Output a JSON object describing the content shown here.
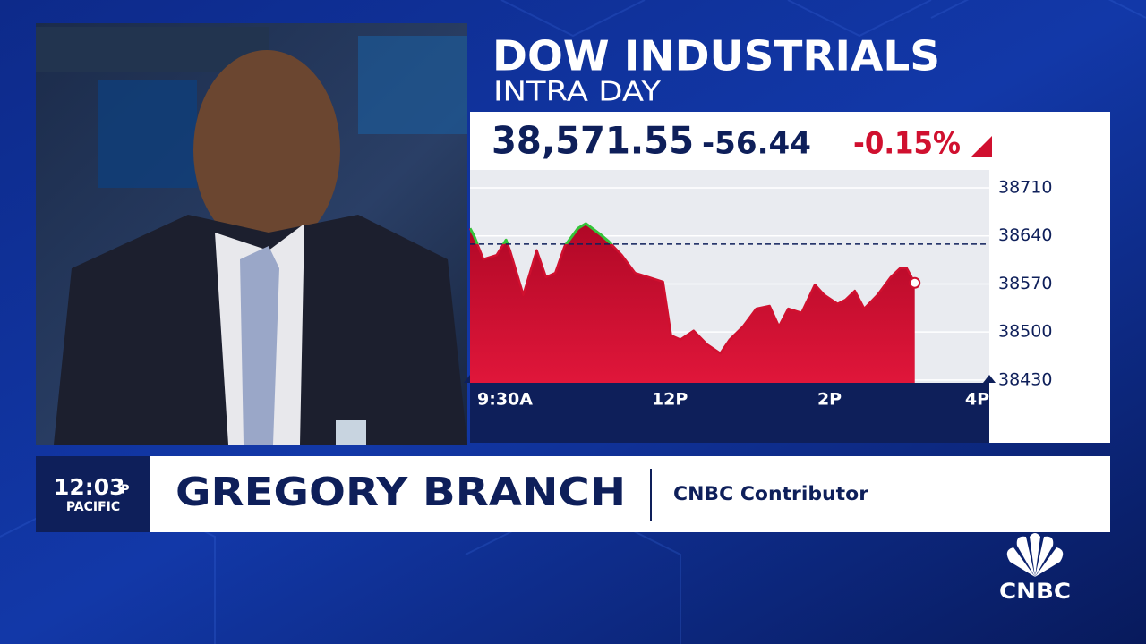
{
  "header": {
    "title": "DOW INDUSTRIALS",
    "subtitle": "INTRA DAY"
  },
  "quote": {
    "last": "38,571.55",
    "change": "-56.44",
    "percent_change": "-0.15%"
  },
  "chart_data": {
    "type": "area",
    "x": [
      0,
      3,
      10,
      20,
      27,
      30,
      40,
      50,
      57,
      64,
      71,
      81,
      87,
      98,
      104,
      114,
      124,
      134,
      145,
      151,
      158,
      168,
      178,
      188,
      195,
      205,
      215,
      225,
      232,
      239,
      249,
      259,
      266,
      276,
      282,
      289,
      296,
      306,
      316,
      323,
      328,
      334
    ],
    "values": [
      38651,
      38640,
      38606,
      38612,
      38634,
      38619,
      38554,
      38619,
      38580,
      38586,
      38625,
      38651,
      38658,
      38642,
      38632,
      38612,
      38586,
      38580,
      38573,
      38495,
      38489,
      38502,
      38482,
      38469,
      38489,
      38508,
      38534,
      38538,
      38508,
      38534,
      38528,
      38569,
      38554,
      38541,
      38547,
      38560,
      38534,
      38554,
      38580,
      38593,
      38593,
      38571.55
    ],
    "xlim": [
      0,
      390
    ],
    "xticks": [
      {
        "value": 0,
        "label": "9:30A"
      },
      {
        "value": 150,
        "label": "12P"
      },
      {
        "value": 270,
        "label": "2P"
      },
      {
        "value": 390,
        "label": "4P"
      }
    ],
    "ylim": [
      38426,
      38736
    ],
    "yticks": [
      38710,
      38640,
      38570,
      38500,
      38430
    ],
    "baseline": 38627.99,
    "color": "#d0102f",
    "up_color": "#35c43a",
    "grid": true
  },
  "lower_third": {
    "time": "12:03",
    "meridiem": "P",
    "zone": "PACIFIC",
    "name": "GREGORY BRANCH",
    "title": "CNBC Contributor"
  },
  "logo": "CNBC"
}
